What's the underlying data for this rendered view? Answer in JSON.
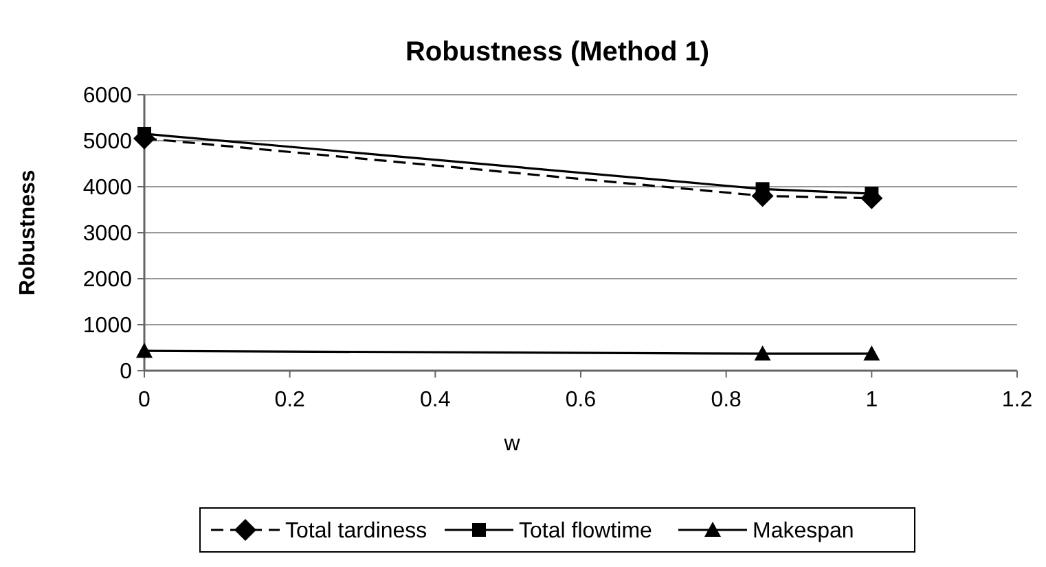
{
  "chart_data": {
    "type": "line",
    "title": "Robustness (Method 1)",
    "xlabel": "w",
    "ylabel": "Robustness",
    "x": [
      0,
      0.85,
      1
    ],
    "xlim": [
      0,
      1.2
    ],
    "xticks": [
      0,
      0.2,
      0.4,
      0.6,
      0.8,
      1,
      1.2
    ],
    "ylim": [
      0,
      6000
    ],
    "yticks": [
      0,
      1000,
      2000,
      3000,
      4000,
      5000,
      6000
    ],
    "grid": "y",
    "legend": "bottom",
    "series": [
      {
        "name": "Total tardiness",
        "color": "#000000",
        "values": [
          5050,
          3800,
          3750
        ],
        "marker": "diamond",
        "line_style": "dashed"
      },
      {
        "name": "Total flowtime",
        "color": "#000000",
        "values": [
          5150,
          3950,
          3850
        ],
        "marker": "square",
        "line_style": "solid"
      },
      {
        "name": "Makespan",
        "color": "#000000",
        "values": [
          430,
          370,
          370
        ],
        "marker": "triangle",
        "line_style": "solid"
      }
    ]
  }
}
